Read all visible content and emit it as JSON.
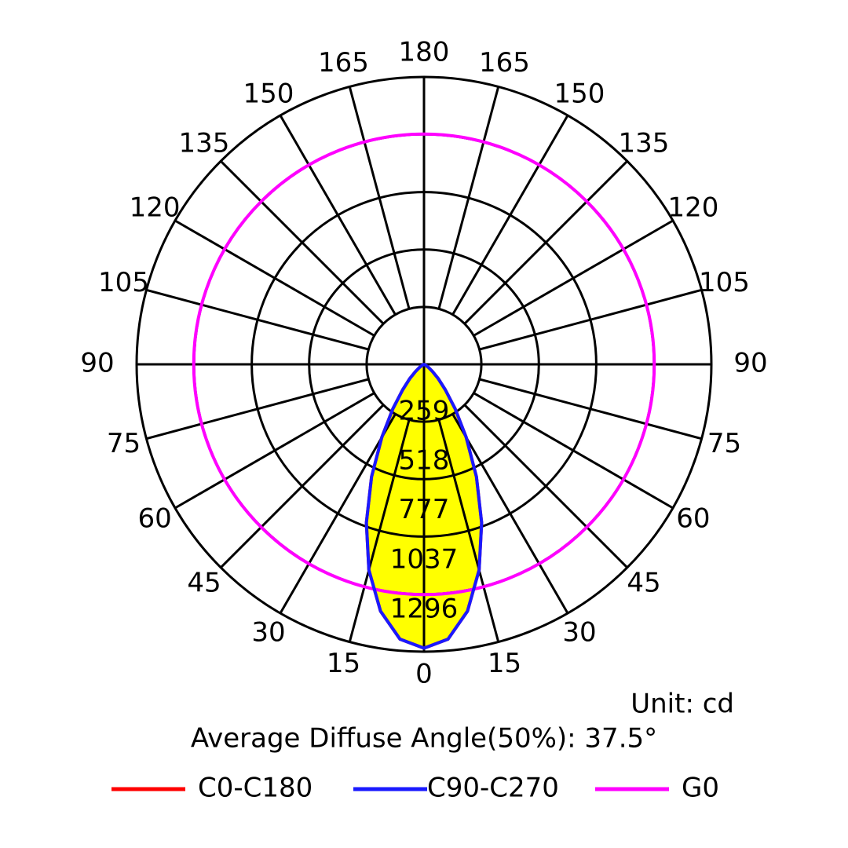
{
  "chart_data": {
    "type": "polar",
    "unit_label": "Unit: cd",
    "diffuse_angle_label": "Average Diffuse Angle(50%): 37.5°",
    "angle_labels_right": [
      "0",
      "15",
      "30",
      "45",
      "60",
      "75",
      "90",
      "105",
      "120",
      "135",
      "150",
      "165",
      "180"
    ],
    "angle_labels_left": [
      "15",
      "30",
      "45",
      "60",
      "75",
      "90",
      "105",
      "120",
      "135",
      "150",
      "165"
    ],
    "radial_ticks": [
      "259",
      "518",
      "777",
      "1037",
      "1296"
    ],
    "radial_tick_values": [
      259,
      518,
      777,
      1037,
      1296
    ],
    "r_max": 1296,
    "grid": true,
    "legend_position": "bottom",
    "series": [
      {
        "name": "C0-C180",
        "color": "#ff0000",
        "angles": [
          0,
          5,
          10,
          15,
          20,
          25,
          30,
          35,
          40,
          45,
          50,
          55,
          60,
          65,
          70,
          75,
          80,
          85,
          90
        ],
        "values": [
          1280,
          1244,
          1130,
          960,
          760,
          560,
          380,
          245,
          150,
          90,
          50,
          25,
          12,
          5,
          2,
          0,
          0,
          0,
          0
        ]
      },
      {
        "name": "C90-C270",
        "color": "#1a1aff",
        "angles": [
          0,
          5,
          10,
          15,
          20,
          25,
          30,
          35,
          40,
          45,
          50,
          55,
          60,
          65,
          70,
          75,
          80,
          85,
          90
        ],
        "values": [
          1280,
          1244,
          1130,
          960,
          760,
          560,
          380,
          245,
          150,
          90,
          50,
          25,
          12,
          5,
          2,
          0,
          0,
          0,
          0
        ]
      },
      {
        "name": "G0",
        "color": "#ff00ff",
        "constant_value": 1290
      }
    ],
    "fill_color": "#ffff00"
  }
}
